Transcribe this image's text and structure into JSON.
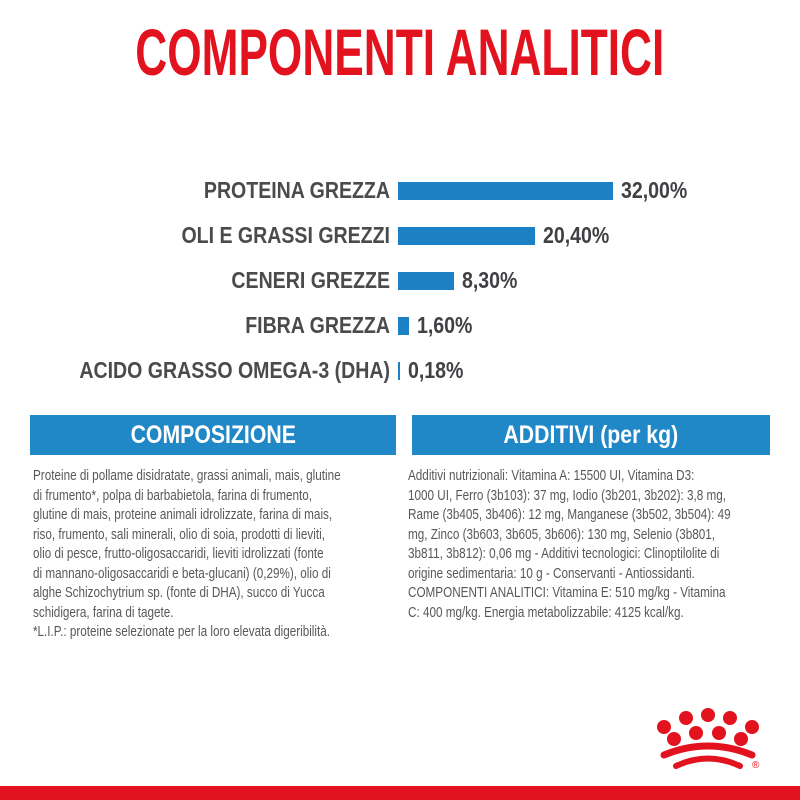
{
  "title": "COMPONENTI ANALITICI",
  "chart_data": {
    "type": "bar",
    "orientation": "horizontal",
    "title": "COMPONENTI ANALITICI",
    "unit": "%",
    "xlim": [
      0,
      32
    ],
    "grid": false,
    "legend": false,
    "categories": [
      "PROTEINA GREZZA",
      "OLI E GRASSI GREZZI",
      "CENERI GREZZE",
      "FIBRA GREZZA",
      "ACIDO GRASSO OMEGA-3 (DHA)"
    ],
    "values": [
      32.0,
      20.4,
      8.3,
      1.6,
      0.18
    ],
    "value_labels": [
      "32,00%",
      "20,40%",
      "8,30%",
      "1,60%",
      "0,18%"
    ]
  },
  "sections": {
    "composizione": {
      "header": "COMPOSIZIONE",
      "body_lines": [
        "Proteine di pollame disidratate, grassi animali, mais, glutine",
        "di frumento*, polpa di barbabietola, farina di frumento,",
        "glutine di mais, proteine animali idrolizzate, farina di mais,",
        "riso, frumento, sali minerali, olio di soia, prodotti di lieviti,",
        "olio di pesce, frutto-oligosaccaridi, lieviti idrolizzati (fonte",
        "di mannano-oligosaccaridi e beta-glucani) (0,29%), olio di",
        "alghe Schizochytrium sp. (fonte di DHA), succo di Yucca",
        "schidigera, farina di tagete.",
        "*L.I.P.: proteine selezionate per la loro elevata digeribilità."
      ]
    },
    "additivi": {
      "header": "ADDITIVI (per kg)",
      "body_lines": [
        "Additivi nutrizionali: Vitamina A: 15500 UI, Vitamina D3:",
        "1000 UI, Ferro (3b103): 37 mg, Iodio (3b201, 3b202): 3,8 mg,",
        "Rame (3b405, 3b406): 12 mg, Manganese (3b502, 3b504): 49",
        "mg, Zinco (3b603, 3b605, 3b606): 130 mg, Selenio (3b801,",
        "3b811, 3b812): 0,06 mg - Additivi tecnologici: Clinoptilolite di",
        "origine sedimentaria: 10 g - Conservanti - Antiossidanti.",
        "COMPONENTI ANALITICI: Vitamina E: 510 mg/kg - Vitamina",
        "C: 400 mg/kg. Energia metabolizzabile: 4125 kcal/kg."
      ]
    }
  },
  "brand": {
    "logo_icon": "royal-canin-crown-logo",
    "registered_mark": "®"
  },
  "colors": {
    "red": "#e2131e",
    "blue-bar": "#1b80c4",
    "blue-header": "#2088c6",
    "gray-label": "#4a4b4d",
    "gray-value": "#404144",
    "gray-text": "#57585b"
  }
}
